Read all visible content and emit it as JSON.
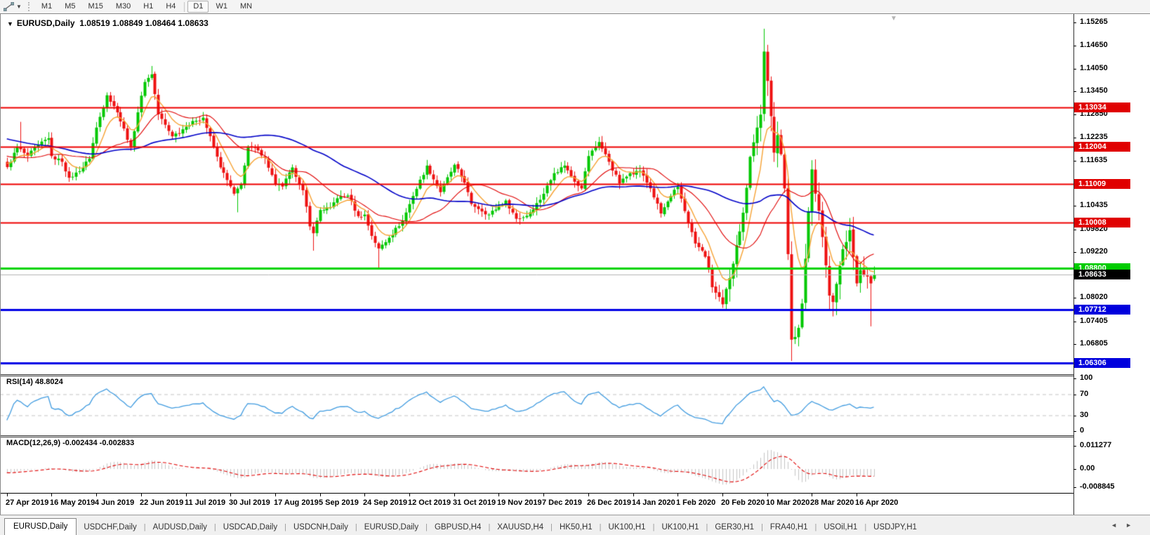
{
  "toolbar": {
    "drawing_tool_icon": "trendline-tool",
    "timeframes": [
      "M1",
      "M5",
      "M15",
      "M30",
      "H1",
      "H4",
      "D1",
      "W1",
      "MN"
    ],
    "active_timeframe": "D1"
  },
  "chart": {
    "title_symbol": "EURUSD,Daily",
    "title_ohlc": "1.08519 1.08849 1.08464 1.08633",
    "shift_marker": "▼",
    "dropdown_arrow": "▼"
  },
  "rsi_panel": {
    "label": "RSI(14) 48.8024",
    "axis_labels": [
      "100",
      "70",
      "30",
      "0"
    ]
  },
  "macd_panel": {
    "label": "MACD(12,26,9) -0.002434 -0.002833",
    "axis_labels": [
      "0.011277",
      "0.00",
      "-0.008845"
    ]
  },
  "tabbar": {
    "tabs": [
      "EURUSD,Daily",
      "USDCHF,Daily",
      "AUDUSD,Daily",
      "USDCAD,Daily",
      "USDCNH,Daily",
      "EURUSD,Daily",
      "GBPUSD,H4",
      "XAUUSD,H4",
      "HK50,H1",
      "UK100,H1",
      "UK100,H1",
      "GER30,H1",
      "FRA40,H1",
      "USOil,H1",
      "USDJPY,H1"
    ],
    "active_tab_index": 0,
    "scroll_left": "◄",
    "scroll_right": "►"
  },
  "colors": {
    "bull": "#00c800",
    "bear": "#ee1111",
    "ma_fast": "#f7a233",
    "ma_mid": "#e00000",
    "ma_slow": "#0000c8",
    "resistance": "#ee0000",
    "support_green": "#00d400",
    "support_blue": "#0000e6",
    "current_price_line": "#b4b4b4",
    "current_price_badge": "#000000",
    "rsi_line": "#3f9be0",
    "rsi_levels": "#c4c4c4",
    "macd_histogram": "#c4c4c4",
    "macd_signal": "#e00000"
  },
  "chart_data": {
    "type": "candlestick",
    "symbol": "EURUSD",
    "timeframe": "Daily",
    "ohlc_current": {
      "open": 1.08519,
      "high": 1.08849,
      "low": 1.08464,
      "close": 1.08633
    },
    "bars": 253,
    "close_anchors": [
      [
        0,
        1.1146
      ],
      [
        3,
        1.1198
      ],
      [
        6,
        1.1175
      ],
      [
        9,
        1.1205
      ],
      [
        12,
        1.1222
      ],
      [
        13,
        1.1175
      ],
      [
        16,
        1.116
      ],
      [
        18,
        1.1118
      ],
      [
        21,
        1.1135
      ],
      [
        24,
        1.1168
      ],
      [
        26,
        1.125
      ],
      [
        29,
        1.1335
      ],
      [
        32,
        1.129
      ],
      [
        36,
        1.12
      ],
      [
        38,
        1.129
      ],
      [
        40,
        1.137
      ],
      [
        42,
        1.139
      ],
      [
        44,
        1.1285
      ],
      [
        48,
        1.1227
      ],
      [
        52,
        1.1252
      ],
      [
        55,
        1.1268
      ],
      [
        57,
        1.1276
      ],
      [
        62,
        1.1145
      ],
      [
        66,
        1.1076
      ],
      [
        68,
        1.11
      ],
      [
        70,
        1.12
      ],
      [
        73,
        1.119
      ],
      [
        75,
        1.117
      ],
      [
        78,
        1.11
      ],
      [
        80,
        1.1095
      ],
      [
        83,
        1.1145
      ],
      [
        86,
        1.1085
      ],
      [
        88,
        1.099
      ],
      [
        89,
        1.0972
      ],
      [
        91,
        1.1033
      ],
      [
        94,
        1.104
      ],
      [
        96,
        1.1064
      ],
      [
        99,
        1.1071
      ],
      [
        102,
        1.1017
      ],
      [
        104,
        1.1021
      ],
      [
        106,
        1.0965
      ],
      [
        108,
        1.0932
      ],
      [
        111,
        1.096
      ],
      [
        115,
        1.1005
      ],
      [
        118,
        1.107
      ],
      [
        122,
        1.115
      ],
      [
        126,
        1.108
      ],
      [
        130,
        1.1152
      ],
      [
        133,
        1.1105
      ],
      [
        135,
        1.1049
      ],
      [
        140,
        1.1021
      ],
      [
        145,
        1.1058
      ],
      [
        148,
        1.101
      ],
      [
        151,
        1.1018
      ],
      [
        155,
        1.106
      ],
      [
        159,
        1.113
      ],
      [
        162,
        1.115
      ],
      [
        164,
        1.1122
      ],
      [
        167,
        1.109
      ],
      [
        169,
        1.1175
      ],
      [
        172,
        1.1212
      ],
      [
        175,
        1.116
      ],
      [
        178,
        1.1103
      ],
      [
        181,
        1.113
      ],
      [
        184,
        1.1136
      ],
      [
        187,
        1.109
      ],
      [
        190,
        1.1024
      ],
      [
        193,
        1.107
      ],
      [
        195,
        1.1094
      ],
      [
        198,
        1.1
      ],
      [
        200,
        1.0945
      ],
      [
        203,
        1.091
      ],
      [
        205,
        1.083
      ],
      [
        208,
        1.0785
      ],
      [
        210,
        1.0854
      ],
      [
        212,
        1.094
      ],
      [
        214,
        1.1026
      ],
      [
        216,
        1.1173
      ],
      [
        218,
        1.125
      ],
      [
        219,
        1.1284
      ],
      [
        220,
        1.145
      ],
      [
        222,
        1.128
      ],
      [
        223,
        1.1184
      ],
      [
        224,
        1.123
      ],
      [
        225,
        1.118
      ],
      [
        226,
        1.109
      ],
      [
        227,
        1.0917
      ],
      [
        228,
        1.0692
      ],
      [
        229,
        1.0699
      ],
      [
        230,
        1.0723
      ],
      [
        231,
        1.0787
      ],
      [
        233,
        1.103
      ],
      [
        234,
        1.114
      ],
      [
        236,
        1.1031
      ],
      [
        237,
        1.0962
      ],
      [
        239,
        1.0808
      ],
      [
        240,
        1.0791
      ],
      [
        243,
        1.093
      ],
      [
        245,
        1.098
      ],
      [
        246,
        1.091
      ],
      [
        247,
        1.084
      ],
      [
        248,
        1.0875
      ],
      [
        249,
        1.0862
      ],
      [
        250,
        1.0858
      ],
      [
        251,
        1.084
      ],
      [
        252,
        1.08633
      ]
    ],
    "wick_extremes": [
      [
        4,
        "high",
        1.1265
      ],
      [
        18,
        "low",
        1.1107
      ],
      [
        42,
        "high",
        1.1412
      ],
      [
        67,
        "low",
        1.1027
      ],
      [
        89,
        "low",
        1.0926
      ],
      [
        108,
        "low",
        1.0879
      ],
      [
        208,
        "low",
        1.0778
      ],
      [
        220,
        "high",
        1.151
      ],
      [
        228,
        "low",
        1.0636
      ],
      [
        234,
        "high",
        1.1147
      ],
      [
        251,
        "low",
        1.0727
      ]
    ],
    "moving_averages": [
      {
        "name": "fast",
        "type": "ema",
        "period": 8
      },
      {
        "name": "mid",
        "type": "sma",
        "period": 21
      },
      {
        "name": "slow",
        "type": "sma",
        "period": 55
      }
    ],
    "horizontal_levels": [
      {
        "price": 1.13034,
        "color": "#ee0000",
        "width": 2,
        "badge": "1.13034",
        "badge_bg": "#e00000"
      },
      {
        "price": 1.12004,
        "color": "#ee0000",
        "width": 2,
        "badge": "1.12004",
        "badge_bg": "#e00000"
      },
      {
        "price": 1.11009,
        "color": "#ee0000",
        "width": 2,
        "badge": "1.11009",
        "badge_bg": "#e00000"
      },
      {
        "price": 1.10008,
        "color": "#ee0000",
        "width": 2,
        "badge": "1.10008",
        "badge_bg": "#e00000"
      },
      {
        "price": 1.088,
        "color": "#00d400",
        "width": 3,
        "badge": "1.08800",
        "badge_bg": "#00cc00"
      },
      {
        "price": 1.08633,
        "color": "#b4b4b4",
        "width": 1,
        "badge": "1.08633",
        "badge_bg": "#000000"
      },
      {
        "price": 1.07712,
        "color": "#0000e6",
        "width": 3,
        "badge": "1.07712",
        "badge_bg": "#0000dd"
      },
      {
        "price": 1.06306,
        "color": "#0000e6",
        "width": 3,
        "badge": "1.06306",
        "badge_bg": "#0000dd"
      }
    ],
    "price_axis_ticks": [
      "1.15265",
      "1.14650",
      "1.14050",
      "1.13450",
      "1.12850",
      "1.12235",
      "1.11635",
      "1.10435",
      "1.09820",
      "1.09220",
      "1.08020",
      "1.07405",
      "1.06805",
      "1.06205"
    ],
    "date_ticks": [
      [
        0,
        "27 Apr 2019"
      ],
      [
        13,
        "16 May 2019"
      ],
      [
        26,
        "4 Jun 2019"
      ],
      [
        39,
        "22 Jun 2019"
      ],
      [
        52,
        "11 Jul 2019"
      ],
      [
        65,
        "30 Jul 2019"
      ],
      [
        78,
        "17 Aug 2019"
      ],
      [
        91,
        "5 Sep 2019"
      ],
      [
        104,
        "24 Sep 2019"
      ],
      [
        117,
        "12 Oct 2019"
      ],
      [
        130,
        "31 Oct 2019"
      ],
      [
        143,
        "19 Nov 2019"
      ],
      [
        156,
        "7 Dec 2019"
      ],
      [
        169,
        "26 Dec 2019"
      ],
      [
        182,
        "14 Jan 2020"
      ],
      [
        195,
        "1 Feb 2020"
      ],
      [
        208,
        "20 Feb 2020"
      ],
      [
        221,
        "10 Mar 2020"
      ],
      [
        234,
        "28 Mar 2020"
      ],
      [
        247,
        "16 Apr 2020"
      ]
    ],
    "rsi": {
      "period": 14,
      "current": 48.8024,
      "levels": [
        70,
        30
      ],
      "range": [
        0,
        100
      ]
    },
    "macd": {
      "fast": 12,
      "slow": 26,
      "signal": 9,
      "macd_current": -0.002434,
      "signal_current": -0.002833
    }
  }
}
